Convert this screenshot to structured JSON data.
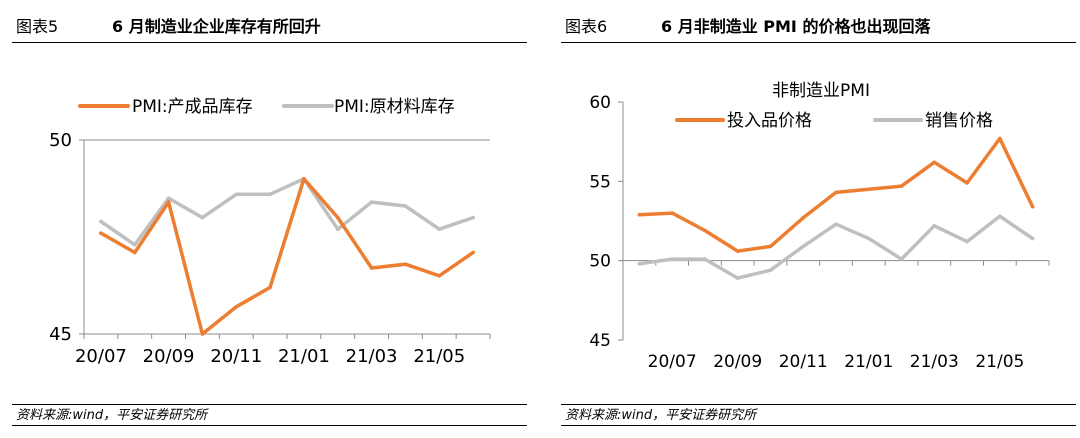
{
  "colors": {
    "orange": "#ED7D31",
    "gray": "#BFBFBF",
    "axis": "#8C8C8C"
  },
  "figures": [
    {
      "label": "图表5",
      "title": "6 月制造业企业库存有所回升",
      "source": "资料来源:wind，平安证券研究所",
      "chart_data": {
        "type": "line",
        "title": "",
        "x": [
          "20/07",
          "20/08",
          "20/09",
          "20/10",
          "20/11",
          "20/12",
          "21/01",
          "21/02",
          "21/03",
          "21/04",
          "21/05",
          "21/06"
        ],
        "x_tick_labels": [
          "20/07",
          "20/09",
          "20/11",
          "21/01",
          "21/03",
          "21/05"
        ],
        "y_tick_labels": [
          "50",
          "45"
        ],
        "ylim": [
          45,
          50
        ],
        "xlabel": "",
        "ylabel": "",
        "legend": "top",
        "series": [
          {
            "name": "PMI:产成品库存",
            "color": "#ED7D31",
            "values": [
              47.6,
              47.1,
              48.4,
              45.0,
              45.7,
              46.2,
              49.0,
              48.0,
              46.7,
              46.8,
              46.5,
              47.1
            ]
          },
          {
            "name": "PMI:原材料库存",
            "color": "#BFBFBF",
            "values": [
              47.9,
              47.3,
              48.5,
              48.0,
              48.6,
              48.6,
              49.0,
              47.7,
              48.4,
              48.3,
              47.7,
              48.0
            ]
          }
        ]
      }
    },
    {
      "label": "图表6",
      "title": "6 月非制造业 PMI 的价格也出现回落",
      "source": "资料来源:wind，平安证券研究所",
      "chart_data": {
        "type": "line",
        "title": "非制造业PMI",
        "x": [
          "20/06",
          "20/07",
          "20/08",
          "20/09",
          "20/10",
          "20/11",
          "20/12",
          "21/01",
          "21/02",
          "21/03",
          "21/04",
          "21/05",
          "21/06"
        ],
        "x_tick_labels": [
          "20/07",
          "20/09",
          "20/11",
          "21/01",
          "21/03",
          "21/05"
        ],
        "y_tick_labels": [
          "60",
          "55",
          "50",
          "45"
        ],
        "ylim": [
          45,
          60
        ],
        "xlabel": "",
        "ylabel": "",
        "legend": "top",
        "series": [
          {
            "name": "投入品价格",
            "color": "#ED7D31",
            "values": [
              52.9,
              53.0,
              51.9,
              50.6,
              50.9,
              52.7,
              54.3,
              54.5,
              54.7,
              56.2,
              54.9,
              57.7,
              53.4
            ]
          },
          {
            "name": "销售价格",
            "color": "#BFBFBF",
            "values": [
              49.8,
              50.1,
              50.1,
              48.9,
              49.4,
              50.9,
              52.3,
              51.4,
              50.1,
              52.2,
              51.2,
              52.8,
              51.4
            ]
          }
        ]
      }
    }
  ]
}
